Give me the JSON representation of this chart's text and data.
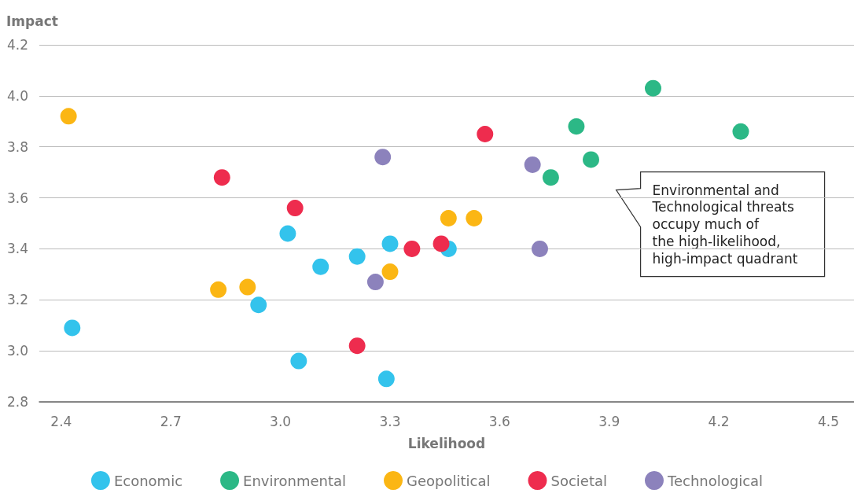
{
  "chart_data": {
    "type": "scatter",
    "xlabel": "Likelihood",
    "ylabel": "Impact",
    "xlim": [
      2.34,
      4.57
    ],
    "xticks": [
      2.4,
      2.7,
      {
        "value": 3.0,
        "label": "3.0"
      },
      3.3,
      3.6,
      3.9,
      4.2,
      4.5
    ],
    "ylim": [
      2.8,
      4.2
    ],
    "yticks": [
      2.8,
      {
        "value": 3.0,
        "label": "3.0"
      },
      3.2,
      3.4,
      3.6,
      3.8,
      {
        "value": 4.0,
        "label": "4.0"
      },
      4.2
    ],
    "grid": "y",
    "legend": "bottom",
    "marker": "circle",
    "annotations": [
      "Environmental and\nTechnological threats\noccupy much of\nthe high-likelihood,\nhigh-impact quadrant"
    ],
    "series": [
      {
        "name": "Economic",
        "color": "#33c3ec",
        "x": [
          2.43,
          2.94,
          3.02,
          3.05,
          3.11,
          3.21,
          3.29,
          3.3,
          3.46
        ],
        "values": [
          3.09,
          3.18,
          3.46,
          2.96,
          3.33,
          3.37,
          2.89,
          3.42,
          3.4
        ]
      },
      {
        "name": "Environmental",
        "color": "#2cb886",
        "x": [
          3.74,
          3.81,
          3.85,
          4.02,
          4.26
        ],
        "values": [
          3.68,
          3.88,
          3.75,
          4.03,
          3.86
        ]
      },
      {
        "name": "Geopolitical",
        "color": "#fbb614",
        "x": [
          2.42,
          2.83,
          2.91,
          3.3,
          3.46,
          3.53
        ],
        "values": [
          3.92,
          3.24,
          3.25,
          3.31,
          3.52,
          3.52
        ]
      },
      {
        "name": "Societal",
        "color": "#ee2c4e",
        "x": [
          2.84,
          3.04,
          3.21,
          3.36,
          3.44,
          3.56
        ],
        "values": [
          3.68,
          3.56,
          3.02,
          3.4,
          3.42,
          3.85
        ]
      },
      {
        "name": "Technological",
        "color": "#8c82bc",
        "x": [
          3.28,
          3.26,
          3.69,
          3.71
        ],
        "values": [
          3.76,
          3.27,
          3.73,
          3.4
        ]
      }
    ]
  }
}
